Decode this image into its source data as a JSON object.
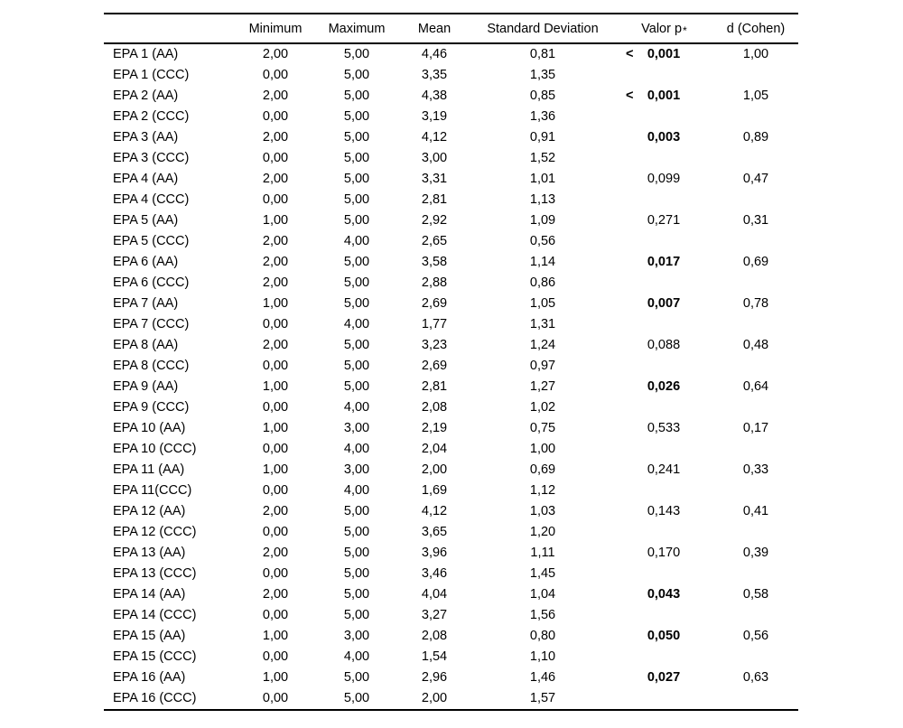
{
  "table": {
    "headers": {
      "label": "",
      "minimum": "Minimum",
      "maximum": "Maximum",
      "mean": "Mean",
      "sd": "Standard Deviation",
      "valor_p": "Valor p",
      "valor_p_mark": "*",
      "d_cohen": "d (Cohen)"
    },
    "rows": [
      {
        "label": "EPA 1 (AA)",
        "min": "2,00",
        "max": "5,00",
        "mean": "4,46",
        "sd": "0,81",
        "p_prefix": "<",
        "p": "0,001",
        "p_bold": true,
        "d": "1,00"
      },
      {
        "label": "EPA 1 (CCC)",
        "min": "0,00",
        "max": "5,00",
        "mean": "3,35",
        "sd": "1,35",
        "p_prefix": "",
        "p": "",
        "p_bold": false,
        "d": ""
      },
      {
        "label": "EPA 2 (AA)",
        "min": "2,00",
        "max": "5,00",
        "mean": "4,38",
        "sd": "0,85",
        "p_prefix": "<",
        "p": "0,001",
        "p_bold": true,
        "d": "1,05"
      },
      {
        "label": "EPA 2 (CCC)",
        "min": "0,00",
        "max": "5,00",
        "mean": "3,19",
        "sd": "1,36",
        "p_prefix": "",
        "p": "",
        "p_bold": false,
        "d": ""
      },
      {
        "label": "EPA 3 (AA)",
        "min": "2,00",
        "max": "5,00",
        "mean": "4,12",
        "sd": "0,91",
        "p_prefix": "",
        "p": "0,003",
        "p_bold": true,
        "d": "0,89"
      },
      {
        "label": "EPA 3 (CCC)",
        "min": "0,00",
        "max": "5,00",
        "mean": "3,00",
        "sd": "1,52",
        "p_prefix": "",
        "p": "",
        "p_bold": false,
        "d": ""
      },
      {
        "label": "EPA 4 (AA)",
        "min": "2,00",
        "max": "5,00",
        "mean": "3,31",
        "sd": "1,01",
        "p_prefix": "",
        "p": "0,099",
        "p_bold": false,
        "d": "0,47"
      },
      {
        "label": "EPA 4 (CCC)",
        "min": "0,00",
        "max": "5,00",
        "mean": "2,81",
        "sd": "1,13",
        "p_prefix": "",
        "p": "",
        "p_bold": false,
        "d": ""
      },
      {
        "label": "EPA 5 (AA)",
        "min": "1,00",
        "max": "5,00",
        "mean": "2,92",
        "sd": "1,09",
        "p_prefix": "",
        "p": "0,271",
        "p_bold": false,
        "d": "0,31"
      },
      {
        "label": "EPA 5 (CCC)",
        "min": "2,00",
        "max": "4,00",
        "mean": "2,65",
        "sd": "0,56",
        "p_prefix": "",
        "p": "",
        "p_bold": false,
        "d": ""
      },
      {
        "label": "EPA 6 (AA)",
        "min": "2,00",
        "max": "5,00",
        "mean": "3,58",
        "sd": "1,14",
        "p_prefix": "",
        "p": "0,017",
        "p_bold": true,
        "d": "0,69"
      },
      {
        "label": "EPA 6 (CCC)",
        "min": "2,00",
        "max": "5,00",
        "mean": "2,88",
        "sd": "0,86",
        "p_prefix": "",
        "p": "",
        "p_bold": false,
        "d": ""
      },
      {
        "label": "EPA 7 (AA)",
        "min": "1,00",
        "max": "5,00",
        "mean": "2,69",
        "sd": "1,05",
        "p_prefix": "",
        "p": "0,007",
        "p_bold": true,
        "d": "0,78"
      },
      {
        "label": "EPA 7 (CCC)",
        "min": "0,00",
        "max": "4,00",
        "mean": "1,77",
        "sd": "1,31",
        "p_prefix": "",
        "p": "",
        "p_bold": false,
        "d": ""
      },
      {
        "label": "EPA 8 (AA)",
        "min": "2,00",
        "max": "5,00",
        "mean": "3,23",
        "sd": "1,24",
        "p_prefix": "",
        "p": "0,088",
        "p_bold": false,
        "d": "0,48"
      },
      {
        "label": "EPA 8 (CCC)",
        "min": "0,00",
        "max": "5,00",
        "mean": "2,69",
        "sd": "0,97",
        "p_prefix": "",
        "p": "",
        "p_bold": false,
        "d": ""
      },
      {
        "label": "EPA 9 (AA)",
        "min": "1,00",
        "max": "5,00",
        "mean": "2,81",
        "sd": "1,27",
        "p_prefix": "",
        "p": "0,026",
        "p_bold": true,
        "d": "0,64"
      },
      {
        "label": "EPA 9 (CCC)",
        "min": "0,00",
        "max": "4,00",
        "mean": "2,08",
        "sd": "1,02",
        "p_prefix": "",
        "p": "",
        "p_bold": false,
        "d": ""
      },
      {
        "label": "EPA 10 (AA)",
        "min": "1,00",
        "max": "3,00",
        "mean": "2,19",
        "sd": "0,75",
        "p_prefix": "",
        "p": "0,533",
        "p_bold": false,
        "d": "0,17"
      },
      {
        "label": "EPA 10 (CCC)",
        "min": "0,00",
        "max": "4,00",
        "mean": "2,04",
        "sd": "1,00",
        "p_prefix": "",
        "p": "",
        "p_bold": false,
        "d": ""
      },
      {
        "label": "EPA 11 (AA)",
        "min": "1,00",
        "max": "3,00",
        "mean": "2,00",
        "sd": "0,69",
        "p_prefix": "",
        "p": "0,241",
        "p_bold": false,
        "d": "0,33"
      },
      {
        "label": "EPA 11(CCC)",
        "min": "0,00",
        "max": "4,00",
        "mean": "1,69",
        "sd": "1,12",
        "p_prefix": "",
        "p": "",
        "p_bold": false,
        "d": ""
      },
      {
        "label": "EPA 12 (AA)",
        "min": "2,00",
        "max": "5,00",
        "mean": "4,12",
        "sd": "1,03",
        "p_prefix": "",
        "p": "0,143",
        "p_bold": false,
        "d": "0,41"
      },
      {
        "label": "EPA 12 (CCC)",
        "min": "0,00",
        "max": "5,00",
        "mean": "3,65",
        "sd": "1,20",
        "p_prefix": "",
        "p": "",
        "p_bold": false,
        "d": ""
      },
      {
        "label": "EPA 13 (AA)",
        "min": "2,00",
        "max": "5,00",
        "mean": "3,96",
        "sd": "1,11",
        "p_prefix": "",
        "p": "0,170",
        "p_bold": false,
        "d": "0,39"
      },
      {
        "label": "EPA 13 (CCC)",
        "min": "0,00",
        "max": "5,00",
        "mean": "3,46",
        "sd": "1,45",
        "p_prefix": "",
        "p": "",
        "p_bold": false,
        "d": ""
      },
      {
        "label": "EPA 14 (AA)",
        "min": "2,00",
        "max": "5,00",
        "mean": "4,04",
        "sd": "1,04",
        "p_prefix": "",
        "p": "0,043",
        "p_bold": true,
        "d": "0,58"
      },
      {
        "label": "EPA 14 (CCC)",
        "min": "0,00",
        "max": "5,00",
        "mean": "3,27",
        "sd": "1,56",
        "p_prefix": "",
        "p": "",
        "p_bold": false,
        "d": ""
      },
      {
        "label": "EPA 15 (AA)",
        "min": "1,00",
        "max": "3,00",
        "mean": "2,08",
        "sd": "0,80",
        "p_prefix": "",
        "p": "0,050",
        "p_bold": true,
        "d": "0,56"
      },
      {
        "label": "EPA 15 (CCC)",
        "min": "0,00",
        "max": "4,00",
        "mean": "1,54",
        "sd": "1,10",
        "p_prefix": "",
        "p": "",
        "p_bold": false,
        "d": ""
      },
      {
        "label": "EPA 16 (AA)",
        "min": "1,00",
        "max": "5,00",
        "mean": "2,96",
        "sd": "1,46",
        "p_prefix": "",
        "p": "0,027",
        "p_bold": true,
        "d": "0,63"
      },
      {
        "label": "EPA 16 (CCC)",
        "min": "0,00",
        "max": "5,00",
        "mean": "2,00",
        "sd": "1,57",
        "p_prefix": "",
        "p": "",
        "p_bold": false,
        "d": ""
      }
    ],
    "colors": {
      "text": "#000000",
      "rule": "#000000",
      "background": "#ffffff"
    }
  }
}
